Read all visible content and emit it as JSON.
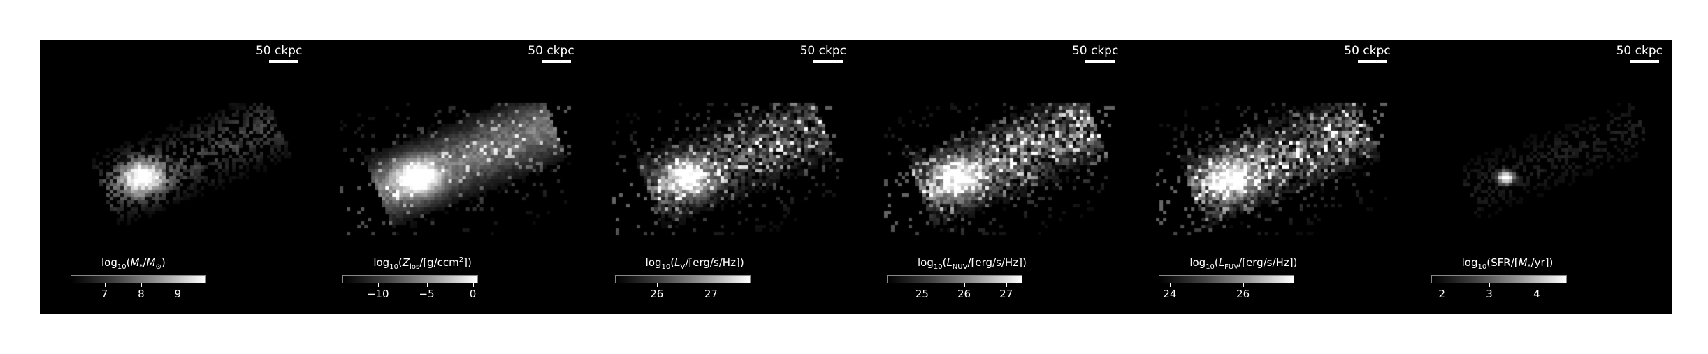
{
  "scale_label": "50 ckpc",
  "panels": [
    {
      "id": "stellar-mass",
      "cbar_title_html": "log<sub>10</sub>(<i>M</i><sub>*</sub>/<i>M</i><sub>&#8857;</sub>)",
      "ticks": [
        {
          "label": "7",
          "pos": 0.25
        },
        {
          "label": "8",
          "pos": 0.52
        },
        {
          "label": "9",
          "pos": 0.79
        }
      ],
      "style": "stellar"
    },
    {
      "id": "metallicity",
      "cbar_title_html": "log<sub>10</sub>(<i>Z</i><sub>los</sub>/[g/ccm<sup>2</sup>])",
      "ticks": [
        {
          "label": "−10",
          "pos": 0.26
        },
        {
          "label": "−5",
          "pos": 0.62
        },
        {
          "label": "0",
          "pos": 0.96
        }
      ],
      "style": "diffuse"
    },
    {
      "id": "lum-v",
      "cbar_title_html": "log<sub>10</sub>(<i>L</i><sub>V</sub>/[erg/s/Hz])",
      "ticks": [
        {
          "label": "26",
          "pos": 0.31
        },
        {
          "label": "27",
          "pos": 0.71
        }
      ],
      "style": "lum"
    },
    {
      "id": "lum-nuv",
      "cbar_title_html": "log<sub>10</sub>(<i>L</i><sub>NUV</sub>/[erg/s/Hz])",
      "ticks": [
        {
          "label": "25",
          "pos": 0.26
        },
        {
          "label": "26",
          "pos": 0.57
        },
        {
          "label": "27",
          "pos": 0.88
        }
      ],
      "style": "uv"
    },
    {
      "id": "lum-fuv",
      "cbar_title_html": "log<sub>10</sub>(<i>L</i><sub>FUV</sub>/[erg/s/Hz])",
      "ticks": [
        {
          "label": "24",
          "pos": 0.08
        },
        {
          "label": "26",
          "pos": 0.62
        }
      ],
      "style": "uv"
    },
    {
      "id": "sfr",
      "cbar_title_html": "log<sub>10</sub>(SFR/[<i>M</i><sub>*</sub>/yr])",
      "ticks": [
        {
          "label": "2",
          "pos": 0.08
        },
        {
          "label": "3",
          "pos": 0.43
        },
        {
          "label": "4",
          "pos": 0.78
        }
      ],
      "style": "sfr"
    }
  ]
}
